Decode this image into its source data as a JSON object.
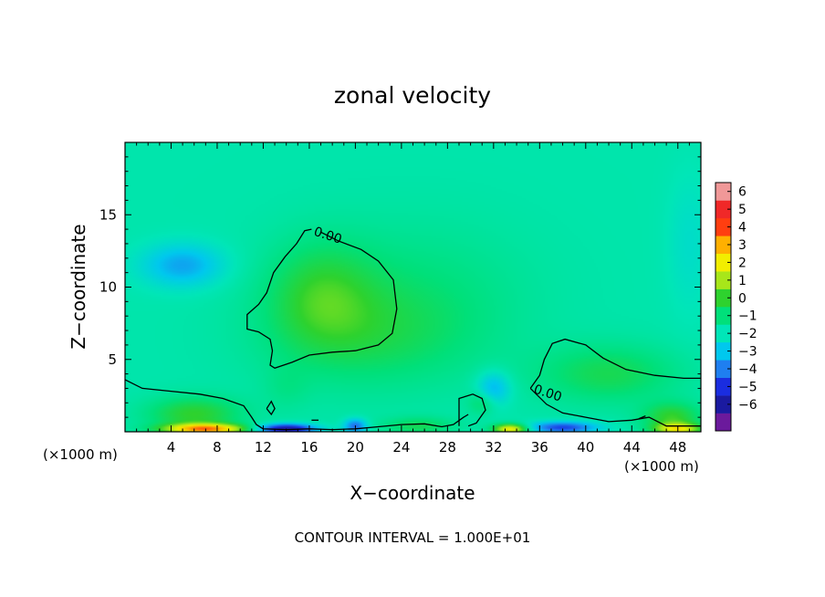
{
  "chart_data": {
    "type": "heatmap",
    "title": "zonal velocity",
    "xlabel": "X−coordinate",
    "ylabel": "Z−coordinate",
    "x_unit_left": "(×1000 m)",
    "x_unit_right": "(×1000 m)",
    "footer": "CONTOUR INTERVAL = 1.000E+01",
    "xlim": [
      0,
      50
    ],
    "ylim": [
      0,
      20
    ],
    "x_ticks": [
      4,
      8,
      12,
      16,
      20,
      24,
      28,
      32,
      36,
      40,
      44,
      48
    ],
    "y_ticks": [
      5,
      10,
      15
    ],
    "grid": false,
    "colorbar": {
      "levels": [
        -6,
        -5,
        -4,
        -3,
        -2,
        -1,
        0,
        1,
        2,
        3,
        4,
        5,
        6
      ],
      "labels": [
        "6",
        "5",
        "4",
        "3",
        "2",
        "1",
        "0",
        "−1",
        "−2",
        "−3",
        "−4",
        "−5",
        "−6"
      ],
      "colors": [
        "#6b1a9c",
        "#1a1aa0",
        "#1a2de0",
        "#1f7ff0",
        "#00c8ee",
        "#00e6b8",
        "#00e07a",
        "#2ed22e",
        "#a8e61a",
        "#f2ee00",
        "#ffb000",
        "#ff3e10",
        "#f02828",
        "#f09898"
      ],
      "placement": "right"
    },
    "contour_labels": [
      {
        "text": "0.00",
        "x": 17.5,
        "y": 13.3
      },
      {
        "text": "0.00",
        "x": 36.6,
        "y": 2.4
      }
    ],
    "background_value": -1.3,
    "features": [
      {
        "x": 5.0,
        "z": 11.5,
        "sx": 3.6,
        "sz": 1.5,
        "value": -1.7
      },
      {
        "x": 17.0,
        "z": 9.5,
        "sx": 4.6,
        "sz": 3.6,
        "value": 1.4
      },
      {
        "x": 21.0,
        "z": 6.5,
        "sx": 9.0,
        "sz": 3.5,
        "value": 0.9
      },
      {
        "x": 25.0,
        "z": 9.5,
        "sx": 10.0,
        "sz": 5.0,
        "value": 0.7
      },
      {
        "x": 42.0,
        "z": 4.0,
        "sx": 6.0,
        "sz": 2.0,
        "value": 1.3
      },
      {
        "x": 6.0,
        "z": 1.2,
        "sx": 4.0,
        "sz": 1.2,
        "value": 1.8
      },
      {
        "x": 7.0,
        "z": 0.2,
        "sx": 3.5,
        "sz": 0.35,
        "value": 4.8
      },
      {
        "x": 14.0,
        "z": 0.2,
        "sx": 2.5,
        "sz": 0.35,
        "value": -4.5
      },
      {
        "x": 20.0,
        "z": 0.4,
        "sx": 1.0,
        "sz": 0.5,
        "value": -2.5
      },
      {
        "x": 25.5,
        "z": 0.4,
        "sx": 3.0,
        "sz": 0.6,
        "value": 1.2
      },
      {
        "x": 33.5,
        "z": 0.2,
        "sx": 1.5,
        "sz": 0.35,
        "value": 4.0
      },
      {
        "x": 38.0,
        "z": 0.3,
        "sx": 3.0,
        "sz": 0.4,
        "value": -3.0
      },
      {
        "x": 47.5,
        "z": 1.0,
        "sx": 2.5,
        "sz": 1.0,
        "value": 1.8
      },
      {
        "x": 48.0,
        "z": 0.2,
        "sx": 2.0,
        "sz": 0.4,
        "value": 3.2
      },
      {
        "x": 49.0,
        "z": 13.0,
        "sx": 2.0,
        "sz": 5.0,
        "value": -0.5
      },
      {
        "x": 14.0,
        "z": 3.0,
        "sx": 2.0,
        "sz": 1.5,
        "value": 0.4
      },
      {
        "x": 32.0,
        "z": 3.0,
        "sx": 1.5,
        "sz": 1.2,
        "value": -1.6
      },
      {
        "x": 31.0,
        "z": 2.0,
        "sx": 1.2,
        "sz": 0.8,
        "value": 1.0
      }
    ],
    "contours": [
      [
        [
          17,
          13.8
        ],
        [
          18.5,
          13.2
        ],
        [
          20.5,
          12.6
        ],
        [
          22,
          11.8
        ],
        [
          23.3,
          10.5
        ],
        [
          23.6,
          8.5
        ],
        [
          23.2,
          6.8
        ],
        [
          22,
          6.0
        ],
        [
          20,
          5.6
        ],
        [
          18,
          5.5
        ],
        [
          16,
          5.3
        ],
        [
          14.5,
          4.8
        ],
        [
          13,
          4.4
        ],
        [
          12.6,
          4.6
        ],
        [
          12.8,
          5.6
        ],
        [
          12.6,
          6.4
        ],
        [
          11.6,
          6.9
        ],
        [
          10.6,
          7.1
        ],
        [
          10.6,
          8.1
        ],
        [
          11.6,
          8.8
        ],
        [
          12.3,
          9.6
        ],
        [
          12.9,
          11.0
        ],
        [
          13.9,
          12.1
        ],
        [
          14.9,
          13.0
        ],
        [
          15.6,
          13.9
        ],
        [
          16.2,
          14.0
        ]
      ],
      [
        [
          0,
          3.6
        ],
        [
          1.5,
          3.0
        ],
        [
          4,
          2.8
        ],
        [
          6.5,
          2.6
        ],
        [
          8.5,
          2.3
        ],
        [
          10.3,
          1.8
        ],
        [
          11,
          1.0
        ],
        [
          11.4,
          0.5
        ],
        [
          12,
          0.2
        ],
        [
          14,
          0.15
        ],
        [
          16,
          0.2
        ],
        [
          18,
          0.15
        ],
        [
          20,
          0.2
        ],
        [
          22,
          0.35
        ],
        [
          24,
          0.5
        ],
        [
          26,
          0.55
        ],
        [
          27.5,
          0.35
        ],
        [
          28.5,
          0.5
        ],
        [
          29.4,
          1.0
        ],
        [
          29.8,
          1.2
        ]
      ],
      [
        [
          0,
          0.3
        ],
        [
          0,
          0.3
        ]
      ],
      [
        [
          35.2,
          3.0
        ],
        [
          36,
          3.9
        ],
        [
          36.4,
          5.0
        ],
        [
          37.1,
          6.1
        ],
        [
          38.2,
          6.4
        ],
        [
          40,
          6.0
        ],
        [
          41.5,
          5.1
        ],
        [
          43.5,
          4.3
        ],
        [
          46,
          3.9
        ],
        [
          48.5,
          3.7
        ],
        [
          50,
          3.7
        ]
      ],
      [
        [
          35.2,
          3.0
        ],
        [
          36.6,
          1.9
        ],
        [
          38,
          1.3
        ],
        [
          40,
          1.0
        ],
        [
          42,
          0.7
        ],
        [
          44,
          0.8
        ],
        [
          45.5,
          1.0
        ],
        [
          47,
          0.4
        ],
        [
          49,
          0.4
        ],
        [
          50,
          0.4
        ]
      ],
      [
        [
          29.0,
          0.4
        ],
        [
          29.0,
          2.3
        ],
        [
          30.2,
          2.6
        ],
        [
          31.0,
          2.3
        ],
        [
          31.3,
          1.5
        ],
        [
          30.5,
          0.6
        ],
        [
          29.8,
          0.4
        ]
      ],
      [
        [
          12.3,
          1.6
        ],
        [
          12.7,
          2.1
        ],
        [
          13.0,
          1.6
        ],
        [
          12.7,
          1.2
        ],
        [
          12.3,
          1.6
        ]
      ],
      [
        [
          16.2,
          0.8
        ],
        [
          16.8,
          0.8
        ]
      ],
      [
        [
          44.6,
          0.9
        ],
        [
          45.2,
          1.1
        ]
      ]
    ]
  }
}
